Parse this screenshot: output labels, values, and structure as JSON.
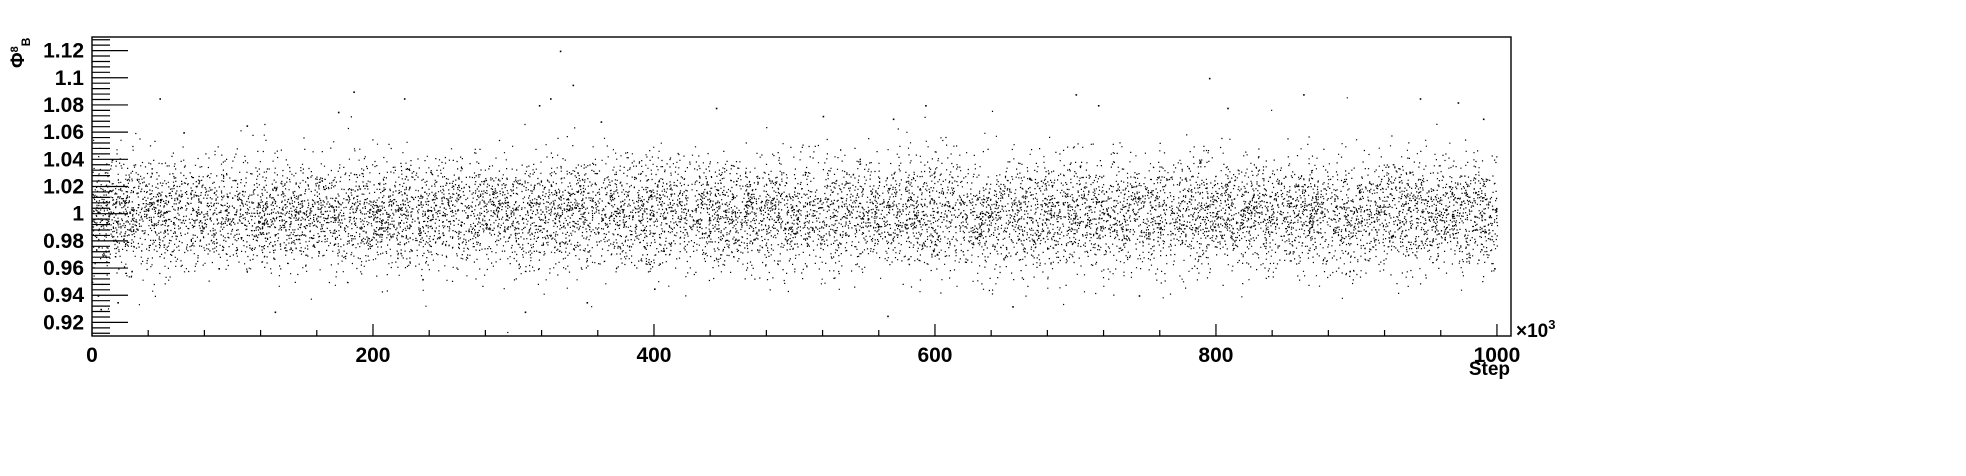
{
  "chart_data": {
    "type": "scatter",
    "title": "",
    "xlabel": "Step",
    "ylabel": "Φ⁸B",
    "ylabel_main": "Φ",
    "ylabel_sup": "8",
    "ylabel_sub": "B",
    "x_multiplier": "×10",
    "x_multiplier_exp": "3",
    "xlim": [
      0,
      1010
    ],
    "ylim": [
      0.91,
      1.13
    ],
    "x_ticks": [
      0,
      200,
      400,
      600,
      800,
      1000
    ],
    "x_tick_labels": [
      "0",
      "200",
      "400",
      "600",
      "800",
      "1000"
    ],
    "y_ticks": [
      0.92,
      0.94,
      0.96,
      0.98,
      1.0,
      1.02,
      1.04,
      1.06,
      1.08,
      1.1,
      1.12
    ],
    "y_tick_labels": [
      "0.92",
      "0.94",
      "0.96",
      "0.98",
      "1",
      "1.02",
      "1.04",
      "1.06",
      "1.08",
      "1.1",
      "1.12"
    ],
    "grid": false,
    "legend": "none",
    "marker_color": "#000000",
    "series": [
      {
        "x_range": [
          0,
          1000
        ],
        "center": 1.0,
        "spread_sd": 0.02,
        "points": [
          [
            0,
            0.995
          ],
          [
            4,
            0.94
          ],
          [
            6,
            0.93
          ],
          [
            10,
            0.965
          ],
          [
            14,
            1.04
          ],
          [
            18,
            0.935
          ],
          [
            22,
            1.01
          ],
          [
            28,
            0.958
          ],
          [
            48,
            1.085
          ],
          [
            65,
            1.06
          ],
          [
            90,
            0.96
          ],
          [
            110,
            1.065
          ],
          [
            130,
            0.928
          ],
          [
            175,
            1.075
          ],
          [
            186,
            1.09
          ],
          [
            222,
            1.085
          ],
          [
            235,
            0.952
          ],
          [
            308,
            0.928
          ],
          [
            318,
            1.08
          ],
          [
            326,
            1.085
          ],
          [
            333,
            1.12
          ],
          [
            342,
            1.095
          ],
          [
            352,
            0.935
          ],
          [
            362,
            1.068
          ],
          [
            400,
            0.945
          ],
          [
            444,
            1.078
          ],
          [
            520,
            1.072
          ],
          [
            566,
            0.925
          ],
          [
            570,
            1.07
          ],
          [
            593,
            1.08
          ],
          [
            655,
            0.932
          ],
          [
            700,
            1.088
          ],
          [
            716,
            1.08
          ],
          [
            745,
            0.94
          ],
          [
            795,
            1.1
          ],
          [
            808,
            1.078
          ],
          [
            862,
            1.088
          ],
          [
            895,
            0.958
          ],
          [
            945,
            1.085
          ],
          [
            972,
            1.082
          ],
          [
            990,
            1.07
          ],
          [
            998,
            0.96
          ]
        ]
      }
    ]
  }
}
